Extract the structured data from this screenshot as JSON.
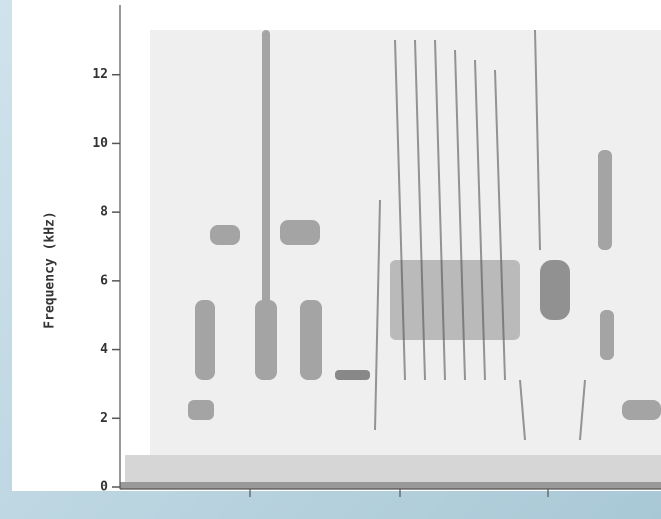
{
  "chart_data": {
    "type": "spectrogram",
    "ylabel": "Frequency (kHz)",
    "ylim": [
      0,
      14
    ],
    "yticks": [
      0,
      2,
      4,
      6,
      8,
      10,
      12
    ],
    "color": "#555555"
  }
}
